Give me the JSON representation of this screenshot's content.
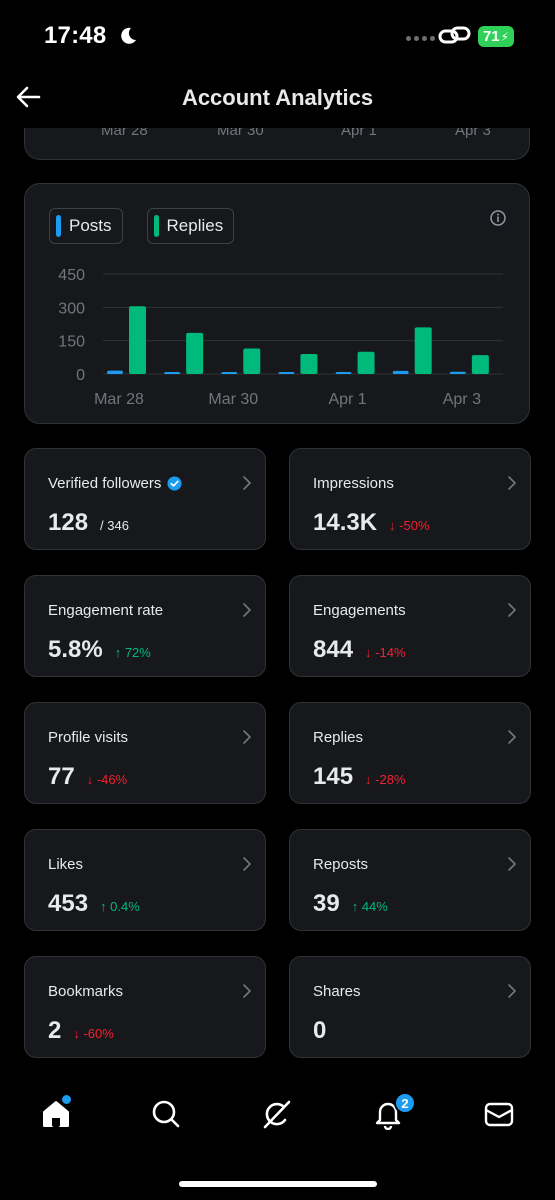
{
  "status_bar": {
    "time": "17:48",
    "battery": "71"
  },
  "header": {
    "title": "Account Analytics"
  },
  "top_chart_axis": [
    "Mar 28",
    "Mar 30",
    "Apr 1",
    "Apr 3"
  ],
  "legend": [
    {
      "label": "Posts",
      "color": "#1d9bf0"
    },
    {
      "label": "Replies",
      "color": "#00ba7c"
    }
  ],
  "chart_data": {
    "type": "bar",
    "categories": [
      "Mar 28",
      "Mar 29",
      "Mar 30",
      "Mar 31",
      "Apr 1",
      "Apr 2",
      "Apr 3"
    ],
    "x_tick_labels": [
      "Mar 28",
      "Mar 30",
      "Apr 1",
      "Apr 3"
    ],
    "y_ticks": [
      "450",
      "300",
      "150",
      "0"
    ],
    "ylim": [
      0,
      450
    ],
    "grid": true,
    "series": [
      {
        "name": "Posts",
        "color": "#1d9bf0",
        "values": [
          15,
          8,
          7,
          5,
          6,
          14,
          10
        ]
      },
      {
        "name": "Replies",
        "color": "#00ba7c",
        "values": [
          305,
          185,
          115,
          90,
          100,
          210,
          85
        ]
      }
    ]
  },
  "metrics": [
    {
      "label": "Verified followers",
      "value": "128",
      "sub": "/ 346",
      "change": "",
      "dir": "",
      "verified": true
    },
    {
      "label": "Impressions",
      "value": "14.3K",
      "sub": "",
      "change": "↓ -50%",
      "dir": "down"
    },
    {
      "label": "Engagement rate",
      "value": "5.8%",
      "sub": "",
      "change": "↑ 72%",
      "dir": "up"
    },
    {
      "label": "Engagements",
      "value": "844",
      "sub": "",
      "change": "↓ -14%",
      "dir": "down"
    },
    {
      "label": "Profile visits",
      "value": "77",
      "sub": "",
      "change": "↓ -46%",
      "dir": "down"
    },
    {
      "label": "Replies",
      "value": "145",
      "sub": "",
      "change": "↓ -28%",
      "dir": "down"
    },
    {
      "label": "Likes",
      "value": "453",
      "sub": "",
      "change": "↑ 0.4%",
      "dir": "up"
    },
    {
      "label": "Reposts",
      "value": "39",
      "sub": "",
      "change": "↑ 44%",
      "dir": "up"
    },
    {
      "label": "Bookmarks",
      "value": "2",
      "sub": "",
      "change": "↓ -60%",
      "dir": "down"
    },
    {
      "label": "Shares",
      "value": "0",
      "sub": "",
      "change": "",
      "dir": ""
    }
  ],
  "bottom_nav": {
    "items": [
      "home-icon",
      "search-icon",
      "grok-icon",
      "bell-icon",
      "mail-icon"
    ],
    "notification_count": "2"
  }
}
